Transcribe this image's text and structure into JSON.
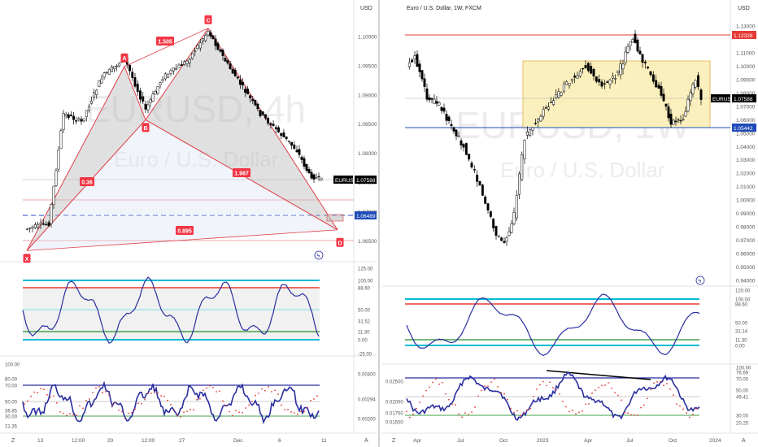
{
  "colors": {
    "up": "#ffffff",
    "down": "#000000",
    "wick": "#000000",
    "harmonic_line": "#e0404a",
    "harmonic_fill": "#b0b0b0",
    "label_red": "#f23645",
    "blue_line": "#1e4bb8",
    "osc_line": "#2a2ea0",
    "cyan": "#00bcd4",
    "red": "#e53935",
    "green": "#43a047",
    "box_fill": "#fdf2b8",
    "box_stroke": "#e0b040",
    "grid": "#eef0f3",
    "axis_text": "#555555",
    "watermark": "#eaeaea"
  },
  "left_panel": {
    "watermark_big": "EURUSD, 4h",
    "watermark_small": "Euro / U.S. Dollar",
    "currency": "USD",
    "price_ticks": [
      "1.10000",
      "1.09500",
      "1.09000",
      "1.08500",
      "1.08000",
      "1.07500",
      "1.07000",
      "1.06500"
    ],
    "price_tag_symbol": "EURUSD",
    "price_tag_value": "1.07588",
    "blue_tag_value": "1.06489",
    "pattern_points": [
      "X",
      "A",
      "B",
      "C",
      "D"
    ],
    "pattern_ratios": {
      "xb": "0.36",
      "ac": "1.505",
      "bd": "1.987",
      "xd": "0.895"
    },
    "x_ticks": [
      "13",
      "12:00",
      "20",
      "12:00",
      "27",
      "Dec",
      "6",
      "11"
    ],
    "z_label": "Z",
    "a_label": "A",
    "rsi_axis": [
      "125.00",
      "100.00",
      "88.60",
      "50.00",
      "31.52",
      "11.30",
      "0.00",
      "-25.00"
    ],
    "stoch_axis": [
      "100.00",
      "80.00",
      "70.00",
      "50.00",
      "36.85",
      "30.00",
      "21.35"
    ],
    "macd_axis": [
      "0.00400",
      "0.00294",
      "0.00200"
    ]
  },
  "right_panel": {
    "title": "Euro / U.S. Dollar, 1W, FXCM",
    "watermark_big": "EURUSD, 1W",
    "watermark_small": "Euro / U.S. Dollar",
    "currency": "USD",
    "price_ticks": [
      "1.13000",
      "1.12328",
      "1.11000",
      "1.10000",
      "1.09000",
      "1.08000",
      "1.07000",
      "1.06000",
      "1.05000",
      "1.04000",
      "1.03000",
      "1.02000",
      "1.01000",
      "1.00000",
      "0.99000",
      "0.98000",
      "0.97000",
      "0.96000",
      "0.95000",
      "0.94000"
    ],
    "price_tag_symbol": "EURUSD",
    "price_tag_value": "1.07588",
    "red_tag_value": "1.12328",
    "blue_tag_value": "1.05442",
    "x_ticks": [
      "Apr",
      "Jul",
      "Oct",
      "2023",
      "Apr",
      "Jul",
      "Oct",
      "2024"
    ],
    "z_label": "Z",
    "a_label": "A",
    "rsi_axis": [
      "120.00",
      "100.00",
      "88.60",
      "50.00",
      "31.14",
      "11.30",
      "0.00"
    ],
    "stoch_axis": [
      "100.00",
      "76.69",
      "70.00",
      "50.00",
      "49.41",
      "30.00",
      "20.25"
    ],
    "macd_axis": [
      "0.02500",
      "0.02000",
      "0.01750",
      "0.01500"
    ]
  },
  "chart_data": [
    {
      "type": "candlestick",
      "title": "EURUSD, 4h",
      "ylabel": "USD",
      "ylim": [
        1.0615,
        1.105
      ],
      "x_ticks": [
        "13",
        "12:00",
        "20",
        "12:00",
        "27",
        "Dec",
        "6",
        "11"
      ],
      "harmonic_pattern": {
        "X": 1.0625,
        "A": 1.096,
        "B": 1.0863,
        "C": 1.1017,
        "D": 1.0669,
        "ratios": {
          "XB": 0.36,
          "AC": 1.505,
          "BD": 1.987,
          "XD": 0.895
        }
      },
      "last_price": 1.07588,
      "horizontal_line": 1.06489
    },
    {
      "type": "candlestick",
      "title": "Euro / U.S. Dollar, 1W, FXCM",
      "ylabel": "USD",
      "ylim": [
        0.94,
        1.135
      ],
      "x_ticks": [
        "Apr",
        "Jul",
        "Oct",
        "2023",
        "Apr",
        "Jul",
        "Oct",
        "2024"
      ],
      "resistance": 1.12328,
      "support": 1.05442,
      "range_box": [
        1.0544,
        1.1044
      ],
      "last_price": 1.07588
    }
  ]
}
